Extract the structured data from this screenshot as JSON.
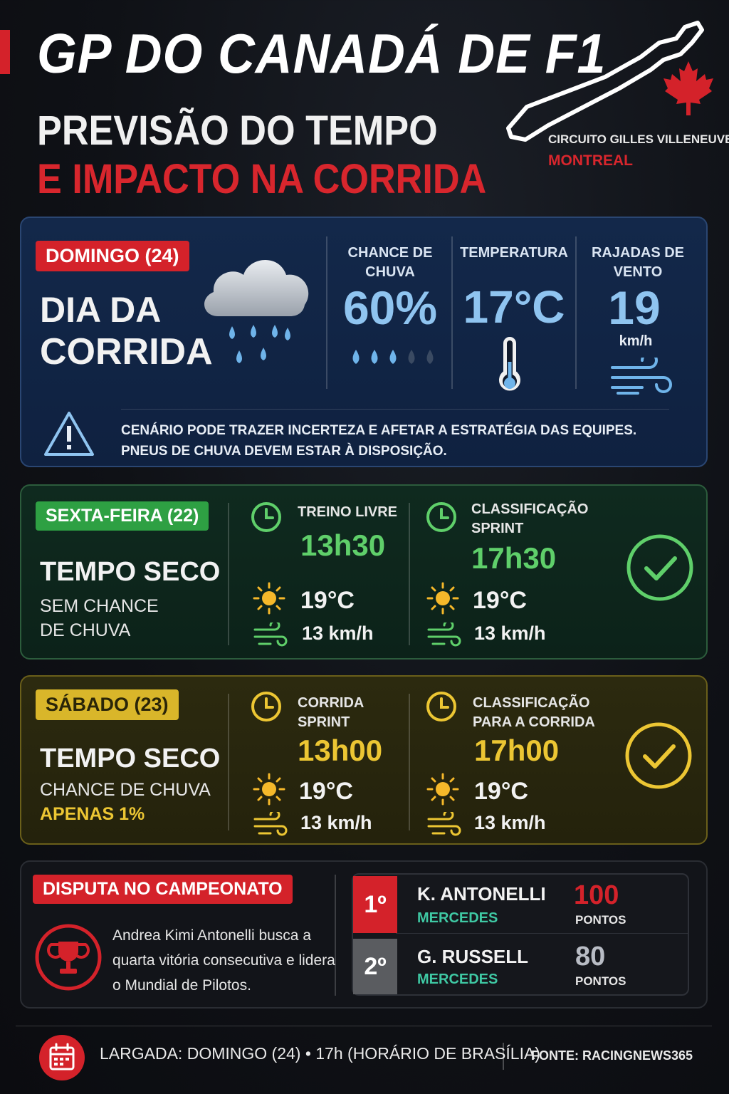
{
  "header": {
    "title": "GP DO CANADÁ DE F1",
    "subtitle_1": "PREVISÃO DO TEMPO",
    "subtitle_2": "E IMPACTO NA CORRIDA",
    "circuit_name": "CIRCUITO GILLES VILLENEUVE",
    "circuit_city": "MONTREAL"
  },
  "sunday": {
    "badge": "DOMINGO (24)",
    "label_line1": "DIA DA",
    "label_line2": "CORRIDA",
    "rain_label_1": "CHANCE DE",
    "rain_label_2": "CHUVA",
    "rain_value": "60%",
    "rain_drops_filled": 3,
    "rain_drops_total": 5,
    "temp_label": "TEMPERATURA",
    "temp_value": "17°C",
    "wind_label_1": "RAJADAS DE",
    "wind_label_2": "VENTO",
    "wind_value": "19",
    "wind_unit": "km/h",
    "alert_line1": "CENÁRIO PODE TRAZER INCERTEZA E AFETAR A ESTRATÉGIA DAS EQUIPES.",
    "alert_line2": "PNEUS DE CHUVA DEVEM ESTAR À DISPOSIÇÃO."
  },
  "friday": {
    "badge": "SEXTA-FEIRA (22)",
    "condition": "TEMPO SECO",
    "sub_line1": "SEM CHANCE",
    "sub_line2": "DE CHUVA",
    "sessions": [
      {
        "name_line1": "TREINO LIVRE",
        "name_line2": "",
        "time": "13h30",
        "temp": "19°C",
        "wind": "13 km/h"
      },
      {
        "name_line1": "CLASSIFICAÇÃO",
        "name_line2": "SPRINT",
        "time": "17h30",
        "temp": "19°C",
        "wind": "13 km/h"
      }
    ]
  },
  "saturday": {
    "badge": "SÁBADO (23)",
    "condition": "TEMPO SECO",
    "sub_line1": "CHANCE DE CHUVA",
    "sub_line2": "APENAS 1%",
    "sessions": [
      {
        "name_line1": "CORRIDA",
        "name_line2": "SPRINT",
        "time": "13h00",
        "temp": "19°C",
        "wind": "13 km/h"
      },
      {
        "name_line1": "CLASSIFICAÇÃO",
        "name_line2": "PARA A CORRIDA",
        "time": "17h00",
        "temp": "19°C",
        "wind": "13 km/h"
      }
    ]
  },
  "championship": {
    "badge": "DISPUTA NO CAMPEONATO",
    "text_line1": "Andrea Kimi Antonelli busca a",
    "text_line2": "quarta vitória consecutiva e lidera",
    "text_line3": "o Mundial de Pilotos.",
    "standings": [
      {
        "pos": "1º",
        "driver": "K. ANTONELLI",
        "team": "MERCEDES",
        "points": "100",
        "points_label": "PONTOS"
      },
      {
        "pos": "2º",
        "driver": "G. RUSSELL",
        "team": "MERCEDES",
        "points": "80",
        "points_label": "PONTOS"
      }
    ]
  },
  "footer": {
    "start": "LARGADA: DOMINGO (24) • 17h (HORÁRIO DE BRASÍLIA)",
    "source": "FONTE: RACINGNEWS365"
  },
  "colors": {
    "red": "#d4222a",
    "green": "#5fcf6a",
    "yellow": "#ecc633",
    "blue": "#8fc4f0",
    "teal": "#3fc9a4"
  },
  "icons": [
    "flag-mark-icon",
    "circuit-map-icon",
    "maple-leaf-icon",
    "rain-cloud-icon",
    "raindrop-icon",
    "thermometer-icon",
    "wind-icon",
    "warning-icon",
    "clock-icon",
    "sun-icon",
    "check-circle-icon",
    "trophy-icon",
    "calendar-icon"
  ]
}
